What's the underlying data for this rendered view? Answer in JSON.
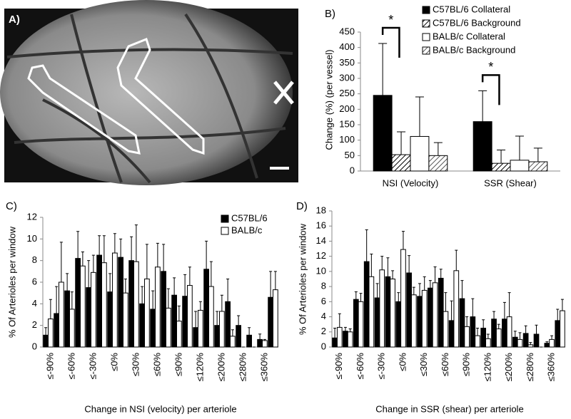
{
  "chart_data": [
    {
      "type": "image",
      "label": "A)"
    },
    {
      "type": "bar",
      "label": "B)",
      "y_label": "Change (%) (per vessel)",
      "categories": [
        "NSI (Velocity)",
        "SSR (Shear)"
      ],
      "series": [
        {
          "name": "C57BL/6 Collateral",
          "color": "#000000",
          "values": [
            245,
            160
          ],
          "errors": [
            168,
            100
          ]
        },
        {
          "name": "C57BL/6 Background",
          "color": "#000000",
          "hatch": true,
          "values": [
            53,
            25
          ],
          "errors": [
            74,
            43
          ]
        },
        {
          "name": "BALB/c Collateral",
          "color": "#ffffff",
          "values": [
            112,
            35
          ],
          "errors": [
            128,
            78
          ]
        },
        {
          "name": "BALB/c Background",
          "color": "#555555",
          "hatch": true,
          "values": [
            50,
            30
          ],
          "errors": [
            42,
            44
          ]
        }
      ],
      "annotations": [
        "*",
        "*"
      ],
      "ylim": [
        0,
        450
      ],
      "yticks": [
        0,
        50,
        100,
        150,
        200,
        250,
        300,
        350,
        400,
        450
      ],
      "legend": "upper right"
    },
    {
      "type": "bar",
      "label": "C)",
      "y_label": "% Of Arterioles per window",
      "x_label": "Change in NSI (velocity) per arteriole",
      "categories": [
        "≤-90%",
        null,
        "≤-60%",
        null,
        "≤-30%",
        null,
        "≤0%",
        null,
        "≤30%",
        null,
        "≤60%",
        null,
        "≤90%",
        null,
        "≤120%",
        null,
        "≤200%",
        null,
        "≤280%",
        null,
        "≤360%",
        null
      ],
      "series": [
        {
          "name": "C57BL/6",
          "color": "#000000",
          "values": [
            1.1,
            3.1,
            5.2,
            8.2,
            5.5,
            8.5,
            5.1,
            8.3,
            8.0,
            4.0,
            3.5,
            7.0,
            4.8,
            4.7,
            1.8,
            7.2,
            2.0,
            4.2,
            2.0,
            1.1,
            0.7,
            4.6
          ],
          "errors": [
            0.7,
            2.5,
            1.6,
            2.5,
            2.5,
            1.8,
            1.7,
            1.7,
            2.2,
            1.6,
            1.7,
            2.5,
            1.6,
            2.0,
            1.5,
            2.6,
            1.3,
            2.1,
            0.9,
            0.7,
            0.5,
            2.4
          ]
        },
        {
          "name": "BALB/c",
          "color": "#ffffff",
          "values": [
            2.6,
            6.0,
            3.5,
            7.5,
            6.9,
            7.8,
            8.7,
            5.0,
            7.9,
            6.3,
            7.4,
            3.6,
            2.4,
            5.7,
            3.4,
            5.6,
            3.3,
            1.0,
            0,
            0,
            0.6,
            5.3
          ],
          "errors": [
            1.8,
            3.7,
            1.6,
            1.3,
            1.6,
            2.5,
            1.8,
            1.3,
            3.4,
            3.2,
            2.2,
            1.8,
            1.4,
            1.7,
            0.8,
            2.3,
            1.5,
            0.6,
            0,
            0,
            0.1,
            1.7
          ]
        }
      ],
      "ylim": [
        0,
        12
      ],
      "yticks": [
        0,
        2,
        4,
        6,
        8,
        10,
        12
      ],
      "legend": "upper right"
    },
    {
      "type": "bar",
      "label": "D)",
      "y_label": "% Of Arterioles per window",
      "x_label": "Change in SSR (shear) per arteriole",
      "categories": [
        "≤-90%",
        null,
        "≤-60%",
        null,
        "≤-30%",
        null,
        "≤0%",
        null,
        "≤30%",
        null,
        "≤60%",
        null,
        "≤90%",
        null,
        "≤120%",
        null,
        "≤200%",
        null,
        "≤280%",
        null,
        "≤360%",
        null
      ],
      "series": [
        {
          "color": "#000000",
          "values": [
            1.2,
            2.1,
            6.3,
            11.3,
            6.5,
            9.3,
            6.0,
            9.8,
            6.7,
            7.8,
            9.1,
            3.5,
            6.4,
            4.0,
            2.5,
            3.7,
            3.7,
            1.3,
            1.8,
            1.7,
            0.5,
            3.5
          ],
          "errors": [
            1.3,
            0.5,
            1.0,
            4.2,
            1.9,
            2.5,
            1.2,
            2.3,
            1.7,
            1.0,
            1.2,
            2.6,
            2.4,
            2.4,
            1.1,
            1.0,
            2.2,
            0.8,
            1.0,
            1.2,
            0.2,
            1.5
          ]
        },
        {
          "color": "#ffffff",
          "values": [
            2.6,
            2.0,
            6.0,
            9.3,
            10.2,
            9.0,
            12.9,
            6.9,
            7.5,
            8.5,
            4.7,
            10.1,
            2.7,
            1.5,
            1.1,
            2.4,
            4.0,
            1.0,
            0.3,
            0,
            1.0,
            4.8
          ],
          "errors": [
            1.8,
            0.4,
            1.1,
            3.0,
            1.8,
            1.1,
            2.4,
            1.0,
            1.8,
            2.1,
            2.5,
            2.7,
            1.3,
            1.0,
            0.6,
            0.6,
            3.2,
            0.9,
            0.3,
            0,
            0.5,
            1.5
          ]
        }
      ],
      "ylim": [
        0,
        18
      ],
      "yticks": [
        0,
        2,
        4,
        6,
        8,
        10,
        12,
        14,
        16,
        18
      ]
    }
  ]
}
